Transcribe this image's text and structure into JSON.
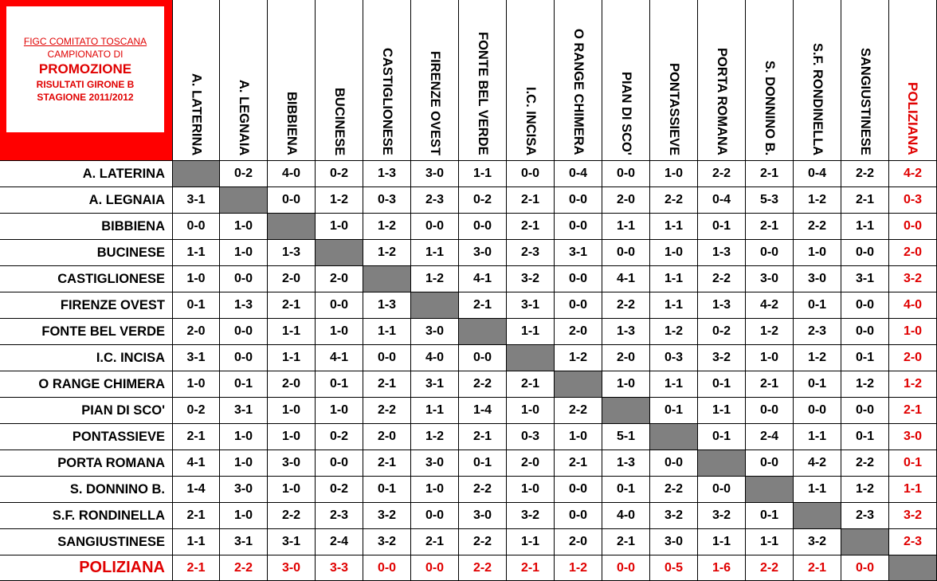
{
  "header": {
    "line1": "FIGC COMITATO TOSCANA",
    "line2": "CAMPIONATO DI",
    "line3": "PROMOZIONE",
    "line4": "RISULTATI GIRONE B",
    "line5": "STAGIONE 2011/2012"
  },
  "highlight_team": "POLIZIANA",
  "colors": {
    "red": "#e00000",
    "diagonal": "#808080",
    "logo_bg": "#ff0000"
  },
  "teams": [
    "A. LATERINA",
    "A. LEGNAIA",
    "BIBBIENA",
    "BUCINESE",
    "CASTIGLIONESE",
    "FIRENZE OVEST",
    "FONTE BEL VERDE",
    "I.C. INCISA",
    "O RANGE CHIMERA",
    "PIAN DI SCO'",
    "PONTASSIEVE",
    "PORTA ROMANA",
    "S. DONNINO B.",
    "S.F. RONDINELLA",
    "SANGIUSTINESE",
    "POLIZIANA"
  ],
  "results": [
    [
      "",
      "0-2",
      "4-0",
      "0-2",
      "1-3",
      "3-0",
      "1-1",
      "0-0",
      "0-4",
      "0-0",
      "1-0",
      "2-2",
      "2-1",
      "0-4",
      "2-2",
      "4-2"
    ],
    [
      "3-1",
      "",
      "0-0",
      "1-2",
      "0-3",
      "2-3",
      "0-2",
      "2-1",
      "0-0",
      "2-0",
      "2-2",
      "0-4",
      "5-3",
      "1-2",
      "2-1",
      "0-3"
    ],
    [
      "0-0",
      "1-0",
      "",
      "1-0",
      "1-2",
      "0-0",
      "0-0",
      "2-1",
      "0-0",
      "1-1",
      "1-1",
      "0-1",
      "2-1",
      "2-2",
      "1-1",
      "0-0"
    ],
    [
      "1-1",
      "1-0",
      "1-3",
      "",
      "1-2",
      "1-1",
      "3-0",
      "2-3",
      "3-1",
      "0-0",
      "1-0",
      "1-3",
      "0-0",
      "1-0",
      "0-0",
      "2-0"
    ],
    [
      "1-0",
      "0-0",
      "2-0",
      "2-0",
      "",
      "1-2",
      "4-1",
      "3-2",
      "0-0",
      "4-1",
      "1-1",
      "2-2",
      "3-0",
      "3-0",
      "3-1",
      "3-2"
    ],
    [
      "0-1",
      "1-3",
      "2-1",
      "0-0",
      "1-3",
      "",
      "2-1",
      "3-1",
      "0-0",
      "2-2",
      "1-1",
      "1-3",
      "4-2",
      "0-1",
      "0-0",
      "4-0"
    ],
    [
      "2-0",
      "0-0",
      "1-1",
      "1-0",
      "1-1",
      "3-0",
      "",
      "1-1",
      "2-0",
      "1-3",
      "1-2",
      "0-2",
      "1-2",
      "2-3",
      "0-0",
      "1-0"
    ],
    [
      "3-1",
      "0-0",
      "1-1",
      "4-1",
      "0-0",
      "4-0",
      "0-0",
      "",
      "1-2",
      "2-0",
      "0-3",
      "3-2",
      "1-0",
      "1-2",
      "0-1",
      "2-0"
    ],
    [
      "1-0",
      "0-1",
      "2-0",
      "0-1",
      "2-1",
      "3-1",
      "2-2",
      "2-1",
      "",
      "1-0",
      "1-1",
      "0-1",
      "2-1",
      "0-1",
      "1-2",
      "1-2"
    ],
    [
      "0-2",
      "3-1",
      "1-0",
      "1-0",
      "2-2",
      "1-1",
      "1-4",
      "1-0",
      "2-2",
      "",
      "0-1",
      "1-1",
      "0-0",
      "0-0",
      "0-0",
      "2-1"
    ],
    [
      "2-1",
      "1-0",
      "1-0",
      "0-2",
      "2-0",
      "1-2",
      "2-1",
      "0-3",
      "1-0",
      "5-1",
      "",
      "0-1",
      "2-4",
      "1-1",
      "0-1",
      "3-0"
    ],
    [
      "4-1",
      "1-0",
      "3-0",
      "0-0",
      "2-1",
      "3-0",
      "0-1",
      "2-0",
      "2-1",
      "1-3",
      "0-0",
      "",
      "0-0",
      "4-2",
      "2-2",
      "0-1"
    ],
    [
      "1-4",
      "3-0",
      "1-0",
      "0-2",
      "0-1",
      "1-0",
      "2-2",
      "1-0",
      "0-0",
      "0-1",
      "2-2",
      "0-0",
      "",
      "1-1",
      "1-2",
      "1-1"
    ],
    [
      "2-1",
      "1-0",
      "2-2",
      "2-3",
      "3-2",
      "0-0",
      "3-0",
      "3-2",
      "0-0",
      "4-0",
      "3-2",
      "3-2",
      "0-1",
      "",
      "2-3",
      "3-2"
    ],
    [
      "1-1",
      "3-1",
      "3-1",
      "2-4",
      "3-2",
      "2-1",
      "2-2",
      "1-1",
      "2-0",
      "2-1",
      "3-0",
      "1-1",
      "1-1",
      "3-2",
      "",
      "2-3"
    ],
    [
      "2-1",
      "2-2",
      "3-0",
      "3-3",
      "0-0",
      "0-0",
      "2-2",
      "2-1",
      "1-2",
      "0-0",
      "0-5",
      "1-6",
      "2-2",
      "2-1",
      "0-0",
      ""
    ]
  ]
}
